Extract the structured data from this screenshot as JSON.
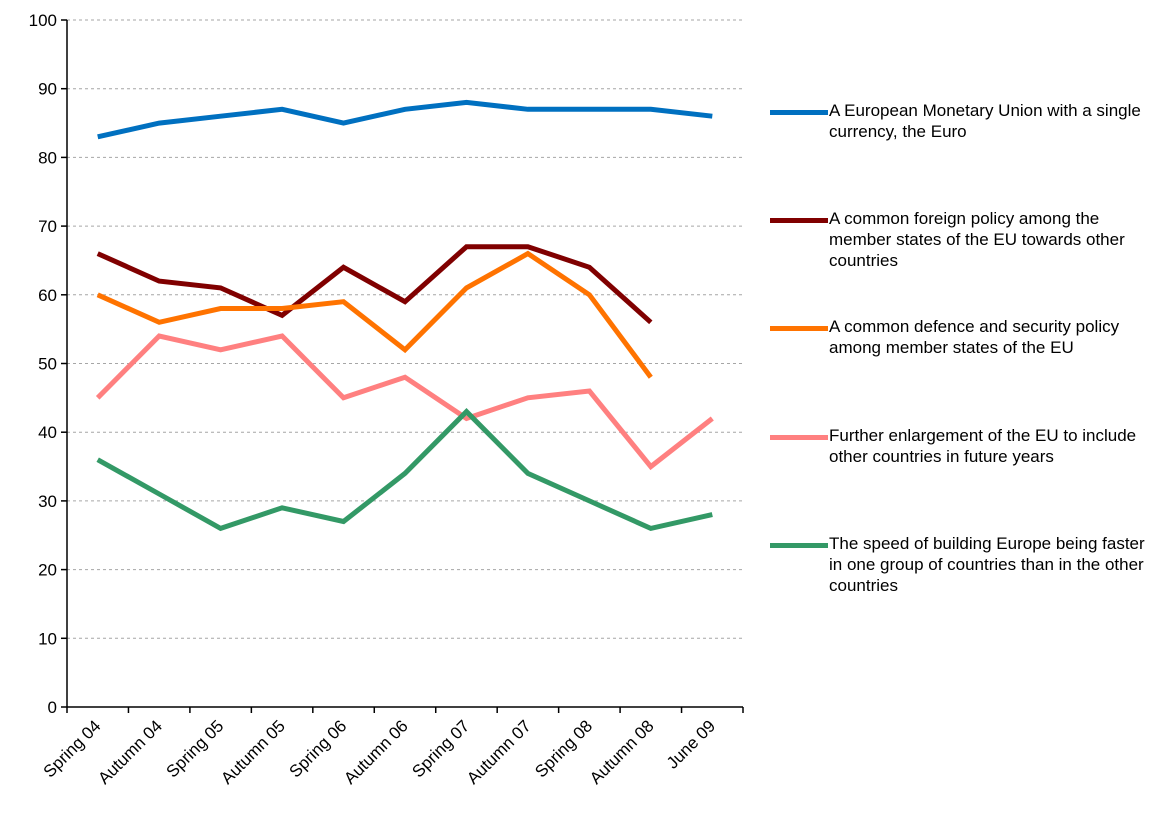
{
  "chart_data": {
    "type": "line",
    "categories": [
      "Spring 04",
      "Autumn 04",
      "Spring 05",
      "Autumn 05",
      "Spring 06",
      "Autumn 06",
      "Spring 07",
      "Autumn 07",
      "Spring 08",
      "Autumn 08",
      "June 09"
    ],
    "ylim": [
      0,
      100
    ],
    "yticks": [
      "0",
      "10",
      "20",
      "30",
      "40",
      "50",
      "60",
      "70",
      "80",
      "90",
      "100"
    ],
    "grid": "horizontal dashed",
    "legend_position": "right",
    "series": [
      {
        "name": "A European Monetary Union with a single currency, the Euro",
        "color": "#0070C0",
        "values": [
          83,
          85,
          86,
          87,
          85,
          87,
          88,
          87,
          87,
          87,
          86
        ]
      },
      {
        "name": "A common foreign policy among the member states of the EU towards other countries",
        "color": "#800000",
        "values": [
          66,
          62,
          61,
          57,
          64,
          59,
          67,
          67,
          64,
          56,
          null
        ]
      },
      {
        "name": "A common defence and security policy among member states of the EU",
        "color": "#FF7300",
        "values": [
          60,
          56,
          58,
          58,
          59,
          52,
          61,
          66,
          60,
          48,
          null
        ]
      },
      {
        "name": "Further enlargement of the EU to include other countries in future years",
        "color": "#FF8080",
        "values": [
          45,
          54,
          52,
          54,
          45,
          48,
          42,
          45,
          46,
          35,
          42
        ]
      },
      {
        "name": "The speed of building Europe being faster in one group of countries than in the other countries",
        "color": "#339966",
        "values": [
          36,
          31,
          26,
          29,
          27,
          34,
          43,
          34,
          30,
          26,
          28
        ]
      }
    ]
  }
}
